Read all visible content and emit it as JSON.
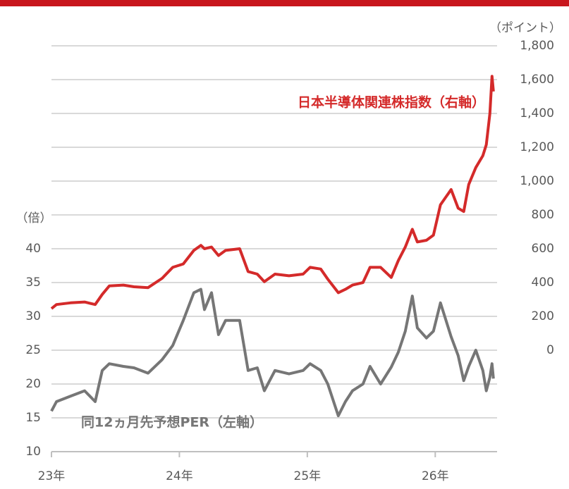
{
  "chart_data": {
    "type": "line",
    "y_label": "（倍）",
    "y2_label": "（ポイント）",
    "x": [
      2023.0,
      2023.039,
      2023.149,
      2023.259,
      2023.342,
      2023.397,
      2023.452,
      2023.562,
      2023.645,
      2023.755,
      2023.865,
      2023.948,
      2024.03,
      2024.113,
      2024.168,
      2024.196,
      2024.251,
      2024.306,
      2024.361,
      2024.471,
      2024.537,
      2024.609,
      2024.664,
      2024.747,
      2024.857,
      2024.967,
      2025.022,
      2025.105,
      2025.16,
      2025.242,
      2025.298,
      2025.353,
      2025.435,
      2025.49,
      2025.573,
      2025.656,
      2025.711,
      2025.766,
      2025.821,
      2025.86,
      2025.931,
      2025.986,
      2026.041,
      2026.124,
      2026.179,
      2026.223,
      2026.262,
      2026.317,
      2026.372,
      2026.399,
      2026.427,
      2026.444,
      2026.455
    ],
    "xlim": [
      2023,
      2026.5
    ],
    "xticks": [
      {
        "value": 2023,
        "label": "23年"
      },
      {
        "value": 2024,
        "label": "24年"
      },
      {
        "value": 2025,
        "label": "25年"
      },
      {
        "value": 2026,
        "label": "26年"
      }
    ],
    "ylim": [
      10,
      70
    ],
    "yticks": [
      10,
      15,
      20,
      25,
      30,
      35,
      40
    ],
    "y2lim": [
      -600,
      1800
    ],
    "y2ticks": [
      0,
      200,
      400,
      600,
      800,
      {
        "value": 1000,
        "label": "1,000"
      },
      {
        "value": 1200,
        "label": "1,200"
      },
      {
        "value": 1400,
        "label": "1,400"
      },
      {
        "value": 1600,
        "label": "1,600"
      },
      {
        "value": 1800,
        "label": "1,800"
      }
    ],
    "grid": true,
    "series": [
      {
        "name": "日本半導体関連株指数（右軸）",
        "color": "#d42a2a",
        "axis": "y2",
        "values": [
          246,
          270,
          280,
          285,
          270,
          330,
          380,
          385,
          375,
          370,
          425,
          490,
          510,
          590,
          620,
          600,
          610,
          560,
          590,
          600,
          465,
          450,
          405,
          450,
          440,
          450,
          490,
          480,
          420,
          340,
          360,
          385,
          400,
          490,
          490,
          430,
          530,
          610,
          715,
          640,
          650,
          680,
          860,
          950,
          840,
          820,
          980,
          1080,
          1150,
          1215,
          1400,
          1620,
          1530
        ]
      },
      {
        "name": "同12ヵ月先予想PER（左軸）",
        "color": "#767676",
        "axis": "y",
        "values": [
          16,
          17.4,
          18.2,
          19,
          17.4,
          22,
          23,
          22.6,
          22.4,
          21.6,
          23.6,
          25.7,
          29.4,
          33.5,
          34,
          31,
          33.5,
          27.3,
          29.4,
          29.4,
          22,
          22.4,
          19,
          22,
          21.5,
          22,
          23,
          22,
          20,
          15.3,
          17.4,
          19,
          20,
          22.6,
          20,
          22.5,
          24.7,
          27.8,
          33,
          28.3,
          26.8,
          27.8,
          32,
          27,
          24.2,
          20.5,
          22.6,
          25,
          22,
          19,
          21,
          23,
          20.8
        ]
      }
    ]
  }
}
